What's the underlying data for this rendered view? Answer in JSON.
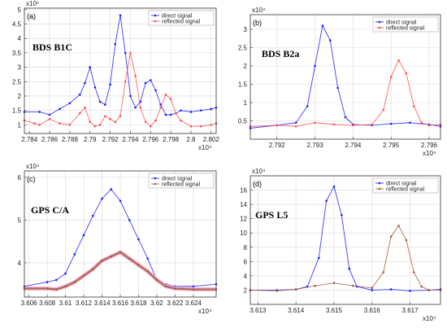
{
  "chart_data": [
    {
      "type": "line",
      "panel_label": "(a)",
      "title": "BDS B1C",
      "x_exponent": "x10⁴",
      "y_exponent": "x10⁵",
      "xlim": [
        2.7835,
        2.8025
      ],
      "ylim": [
        0.7,
        5.05
      ],
      "xticks": [
        "2.784",
        "2.786",
        "2.788",
        "2.79",
        "2.792",
        "2.794",
        "2.796",
        "2.798",
        "2.8",
        "2.802"
      ],
      "yticks": [
        "1",
        "1.5",
        "2",
        "2.5",
        "3",
        "3.5",
        "4",
        "4.5",
        "5"
      ],
      "legend": [
        "direct signal",
        "reflected signal"
      ],
      "legend_position": "top-right",
      "grid": true,
      "series": [
        {
          "name": "direct signal",
          "color": "#1a1aff",
          "x": [
            2.7835,
            2.785,
            2.786,
            2.787,
            2.788,
            2.789,
            2.7895,
            2.79,
            2.7905,
            2.791,
            2.7915,
            2.792,
            2.7925,
            2.793,
            2.7935,
            2.794,
            2.7945,
            2.795,
            2.7955,
            2.796,
            2.7965,
            2.797,
            2.7975,
            2.798,
            2.7985,
            2.799,
            2.8,
            2.801,
            2.802,
            2.8025
          ],
          "y": [
            1.45,
            1.45,
            1.35,
            1.55,
            1.75,
            2.05,
            2.45,
            3.0,
            2.3,
            1.8,
            1.7,
            2.4,
            3.8,
            4.8,
            3.5,
            2.0,
            1.6,
            1.8,
            2.45,
            2.55,
            2.2,
            1.7,
            1.35,
            1.35,
            1.4,
            1.5,
            1.45,
            1.5,
            1.55,
            1.6
          ]
        },
        {
          "name": "reflected signal",
          "color": "#ff4d4d",
          "x": [
            2.7835,
            2.7845,
            2.785,
            2.786,
            2.787,
            2.788,
            2.789,
            2.7895,
            2.79,
            2.7905,
            2.791,
            2.7915,
            2.792,
            2.7925,
            2.793,
            2.7935,
            2.794,
            2.7945,
            2.795,
            2.7955,
            2.796,
            2.7965,
            2.797,
            2.7975,
            2.798,
            2.7985,
            2.799,
            2.8,
            2.801,
            2.802,
            2.8025
          ],
          "y": [
            1.15,
            1.05,
            1.0,
            1.2,
            1.05,
            1.0,
            1.4,
            1.6,
            1.1,
            0.95,
            1.0,
            1.3,
            1.2,
            1.1,
            1.3,
            2.5,
            3.5,
            2.7,
            1.6,
            1.1,
            0.95,
            1.15,
            1.6,
            2.05,
            1.9,
            1.4,
            1.15,
            0.95,
            0.95,
            1.0,
            1.05
          ]
        }
      ]
    },
    {
      "type": "line",
      "panel_label": "(b)",
      "title": "BDS B2a",
      "x_exponent": "x10⁴",
      "y_exponent": "x10⁴",
      "xlim": [
        2.7913,
        2.7963
      ],
      "ylim": [
        0,
        3.4
      ],
      "xticks": [
        "2.792",
        "2.793",
        "2.794",
        "2.795",
        "2.796"
      ],
      "yticks": [
        "0.5",
        "1",
        "1.5",
        "2",
        "2.5",
        "3"
      ],
      "legend": [
        "direct signal",
        "reflected signal"
      ],
      "legend_position": "top-right",
      "grid": true,
      "series": [
        {
          "name": "direct signal",
          "color": "#1a1aff",
          "x": [
            2.7913,
            2.792,
            2.7925,
            2.7928,
            2.793,
            2.7932,
            2.7934,
            2.7936,
            2.7938,
            2.794,
            2.7945,
            2.795,
            2.7955,
            2.796,
            2.7963
          ],
          "y": [
            0.3,
            0.38,
            0.45,
            0.9,
            2.0,
            3.1,
            2.7,
            1.4,
            0.6,
            0.4,
            0.38,
            0.42,
            0.45,
            0.4,
            0.35
          ]
        },
        {
          "name": "reflected signal",
          "color": "#ff4d4d",
          "x": [
            2.7913,
            2.792,
            2.7925,
            2.793,
            2.7935,
            2.794,
            2.7945,
            2.7948,
            2.795,
            2.7952,
            2.7954,
            2.7956,
            2.7958,
            2.796,
            2.7963
          ],
          "y": [
            0.35,
            0.38,
            0.35,
            0.45,
            0.4,
            0.38,
            0.4,
            0.8,
            1.7,
            2.15,
            1.8,
            0.9,
            0.45,
            0.38,
            0.4
          ]
        }
      ]
    },
    {
      "type": "line",
      "panel_label": "(c)",
      "title": "GPS C/A",
      "x_exponent": "x10⁴",
      "y_exponent": "x10⁴",
      "xlim": [
        3.6055,
        3.6265
      ],
      "ylim": [
        3.2,
        6.15
      ],
      "xticks": [
        "3.606",
        "3.608",
        "3.61",
        "3.612",
        "3.614",
        "3.616",
        "3.618",
        "3.62",
        "3.622",
        "3.624"
      ],
      "yticks": [
        "4",
        "5",
        "6"
      ],
      "legend": [
        "direct signal",
        "reflected signal"
      ],
      "legend_position": "top-right",
      "grid": true,
      "series": [
        {
          "name": "direct signal",
          "color": "#1a1aff",
          "x": [
            3.6055,
            3.608,
            3.609,
            3.61,
            3.611,
            3.612,
            3.613,
            3.614,
            3.615,
            3.616,
            3.617,
            3.618,
            3.619,
            3.62,
            3.621,
            3.622,
            3.624,
            3.6265
          ],
          "y": [
            3.45,
            3.55,
            3.6,
            3.75,
            4.2,
            4.65,
            5.1,
            5.5,
            5.72,
            5.45,
            5.0,
            4.55,
            4.1,
            3.6,
            3.5,
            3.45,
            3.45,
            3.5
          ]
        },
        {
          "name": "reflected signal",
          "color": "#a05a3c",
          "x": [
            3.6055,
            3.608,
            3.609,
            3.61,
            3.611,
            3.612,
            3.613,
            3.614,
            3.615,
            3.616,
            3.617,
            3.618,
            3.619,
            3.62,
            3.621,
            3.622,
            3.624,
            3.6265
          ],
          "y": [
            3.4,
            3.4,
            3.38,
            3.45,
            3.55,
            3.7,
            3.85,
            4.05,
            4.15,
            4.25,
            4.1,
            3.95,
            3.8,
            3.6,
            3.45,
            3.4,
            3.38,
            3.38
          ]
        }
      ]
    },
    {
      "type": "line",
      "panel_label": "(d)",
      "title": "GPS L5",
      "x_exponent": "x10⁴",
      "y_exponent": "x10⁴",
      "xlim": [
        3.6128,
        3.6178
      ],
      "ylim": [
        0,
        18
      ],
      "xticks": [
        "3.613",
        "3.614",
        "3.615",
        "3.616",
        "3.617"
      ],
      "yticks": [
        "2",
        "4",
        "6",
        "8",
        "10",
        "12",
        "14",
        "16"
      ],
      "legend": [
        "direct signal",
        "reflected signal"
      ],
      "legend_position": "top-right",
      "grid": true,
      "series": [
        {
          "name": "direct signal",
          "color": "#1a1aff",
          "x": [
            3.6128,
            3.6135,
            3.614,
            3.6143,
            3.6146,
            3.6148,
            3.615,
            3.6152,
            3.6154,
            3.6156,
            3.616,
            3.6165,
            3.617,
            3.6175,
            3.6178
          ],
          "y": [
            2.0,
            2.0,
            2.1,
            2.5,
            6.5,
            14.5,
            16.5,
            12.5,
            5.0,
            2.5,
            2.0,
            2.1,
            1.9,
            2.0,
            2.1
          ]
        },
        {
          "name": "reflected signal",
          "color": "#a05a3c",
          "x": [
            3.6128,
            3.6135,
            3.614,
            3.6145,
            3.615,
            3.6155,
            3.616,
            3.6163,
            3.6165,
            3.6167,
            3.6169,
            3.6171,
            3.6173,
            3.6175,
            3.6178
          ],
          "y": [
            2.0,
            1.9,
            2.1,
            2.6,
            3.0,
            2.6,
            2.3,
            4.5,
            9.5,
            11.0,
            9.0,
            4.5,
            2.5,
            2.0,
            2.0
          ]
        }
      ]
    }
  ]
}
